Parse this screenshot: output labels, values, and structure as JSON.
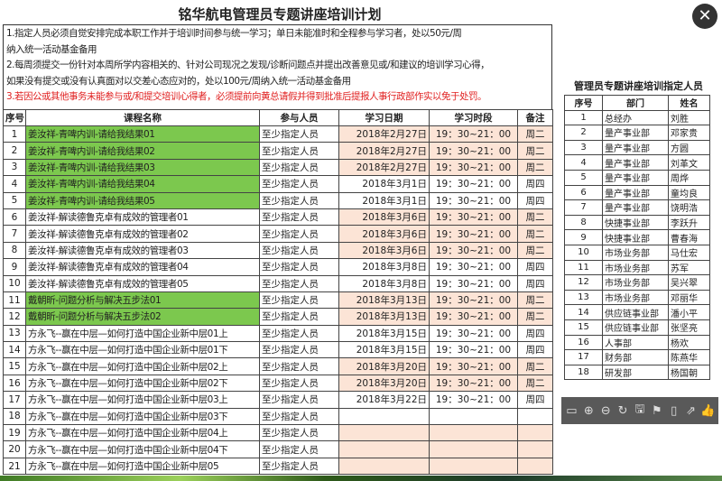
{
  "title": "铭华航电管理员专题讲座培训计划",
  "notes": [
    {
      "text": "1.指定人员必须自觉安排完成本职工作并于培训时间参与统一学习；单日未能准时和全程参与学习者，处以50元/周",
      "red": false
    },
    {
      "text": "纳入统一活动基金备用",
      "red": false
    },
    {
      "text": "2.每周须提交一份针对本周所学内容相关的、针对公司现况之发现/诊断问题点并提出改善意见或/和建议的培训学习心得，",
      "red": false
    },
    {
      "text": "如果没有提交或没有认真面对以交差心态应对的，处以100元/周纳入统一活动基金备用",
      "red": false
    },
    {
      "text": "3.若因公或其他事务未能参与或/和提交培训心得者，必须提前向黄总请假并得到批准后提报人事行政部作实以免于处罚。",
      "red": true
    }
  ],
  "main_table": {
    "headers": [
      "序号",
      "课程名称",
      "参与人员",
      "学习日期",
      "学习时段",
      "备注"
    ],
    "rows": [
      [
        "1",
        "姜汝祥-青啤内训-请给我结果01",
        "至少指定人员",
        "2018年2月27日",
        "19：30~21：00",
        "周二"
      ],
      [
        "2",
        "姜汝祥-青啤内训-请给我结果02",
        "至少指定人员",
        "2018年2月27日",
        "19：30~21：00",
        "周二"
      ],
      [
        "3",
        "姜汝祥-青啤内训-请给我结果03",
        "至少指定人员",
        "2018年2月27日",
        "19：30~21：00",
        "周二"
      ],
      [
        "4",
        "姜汝祥-青啤内训-请给我结果04",
        "至少指定人员",
        "2018年3月1日",
        "19：30~21：00",
        "周四"
      ],
      [
        "5",
        "姜汝祥-青啤内训-请给我结果05",
        "至少指定人员",
        "2018年3月1日",
        "19：30~21：00",
        "周四"
      ],
      [
        "6",
        "姜汝祥-解读德鲁克卓有成效的管理者01",
        "至少指定人员",
        "2018年3月6日",
        "19：30~21：00",
        "周二"
      ],
      [
        "7",
        "姜汝祥-解读德鲁克卓有成效的管理者02",
        "至少指定人员",
        "2018年3月6日",
        "19：30~21：00",
        "周二"
      ],
      [
        "8",
        "姜汝祥-解读德鲁克卓有成效的管理者03",
        "至少指定人员",
        "2018年3月6日",
        "19：30~21：00",
        "周二"
      ],
      [
        "9",
        "姜汝祥-解读德鲁克卓有成效的管理者04",
        "至少指定人员",
        "2018年3月8日",
        "19：30~21：00",
        "周四"
      ],
      [
        "10",
        "姜汝祥-解读德鲁克卓有成效的管理者05",
        "至少指定人员",
        "2018年3月8日",
        "19：30~21：00",
        "周四"
      ],
      [
        "11",
        "戴朝昕-问题分析与解决五步法01",
        "至少指定人员",
        "2018年3月13日",
        "19：30~21：00",
        "周二"
      ],
      [
        "12",
        "戴朝昕-问题分析与解决五步法02",
        "至少指定人员",
        "2018年3月13日",
        "19：30~21：00",
        "周二"
      ],
      [
        "13",
        "方永飞--赢在中层—如何打造中国企业新中层01上",
        "至少指定人员",
        "2018年3月15日",
        "19：30~21：00",
        "周四"
      ],
      [
        "14",
        "方永飞--赢在中层—如何打造中国企业新中层01下",
        "至少指定人员",
        "2018年3月15日",
        "19：30~21：00",
        "周四"
      ],
      [
        "15",
        "方永飞--赢在中层—如何打造中国企业新中层02上",
        "至少指定人员",
        "2018年3月20日",
        "19：30~21：00",
        "周二"
      ],
      [
        "16",
        "方永飞--赢在中层—如何打造中国企业新中层02下",
        "至少指定人员",
        "2018年3月20日",
        "19：30~21：00",
        "周二"
      ],
      [
        "17",
        "方永飞--赢在中层—如何打造中国企业新中层03上",
        "至少指定人员",
        "2018年3月22日",
        "19：30~21：00",
        "周四"
      ],
      [
        "18",
        "方永飞--赢在中层—如何打造中国企业新中层03下",
        "至少指定人员",
        "",
        "",
        ""
      ],
      [
        "19",
        "方永飞--赢在中层—如何打造中国企业新中层04上",
        "至少指定人员",
        "",
        "",
        ""
      ],
      [
        "20",
        "方永飞--赢在中层—如何打造中国企业新中层04下",
        "至少指定人员",
        "",
        "",
        ""
      ],
      [
        "21",
        "方永飞--赢在中层—如何打造中国企业新中层05",
        "至少指定人员",
        "",
        "",
        ""
      ]
    ],
    "green_rows": [
      1,
      2,
      3,
      4,
      5,
      11,
      12
    ],
    "peach_rows": [
      1,
      2,
      3,
      6,
      7,
      8,
      11,
      12,
      15,
      16,
      19,
      20,
      21
    ]
  },
  "side_table": {
    "title": "管理员专题讲座培训指定人员",
    "headers": [
      "序号",
      "部门",
      "姓名"
    ],
    "rows": [
      [
        "1",
        "总经办",
        "刘胜"
      ],
      [
        "2",
        "量产事业部",
        "邓家贵"
      ],
      [
        "3",
        "量产事业部",
        "方圆"
      ],
      [
        "4",
        "量产事业部",
        "刘革文"
      ],
      [
        "5",
        "量产事业部",
        "周烨"
      ],
      [
        "6",
        "量产事业部",
        "童均良"
      ],
      [
        "7",
        "量产事业部",
        "饶明浩"
      ],
      [
        "8",
        "快捷事业部",
        "李跃升"
      ],
      [
        "9",
        "快捷事业部",
        "曹春海"
      ],
      [
        "10",
        "市场业务部",
        "马仕宏"
      ],
      [
        "11",
        "市场业务部",
        "苏军"
      ],
      [
        "12",
        "市场业务部",
        "吴兴翠"
      ],
      [
        "13",
        "市场业务部",
        "邓丽华"
      ],
      [
        "14",
        "供应链事业部",
        "潘小平"
      ],
      [
        "15",
        "供应链事业部",
        "张坚亮"
      ],
      [
        "16",
        "人事部",
        "杨欢"
      ],
      [
        "17",
        "财务部",
        "陈燕华"
      ],
      [
        "18",
        "研发部",
        "杨国朝"
      ]
    ]
  },
  "viewer": {
    "close_icon": "✕",
    "toolbar": [
      {
        "name": "fit-screen-icon",
        "glyph": "▭"
      },
      {
        "name": "zoom-in-icon",
        "glyph": "⊕"
      },
      {
        "name": "zoom-out-icon",
        "glyph": "⊖"
      },
      {
        "name": "rotate-icon",
        "glyph": "↻"
      },
      {
        "name": "save-icon",
        "glyph": "🖫"
      },
      {
        "name": "bookmark-icon",
        "glyph": "⚑"
      },
      {
        "name": "phone-icon",
        "glyph": "▯"
      },
      {
        "name": "share-icon",
        "glyph": "⇗"
      },
      {
        "name": "like-icon",
        "glyph": "👍"
      }
    ]
  },
  "colors": {
    "green": "#7cc84e",
    "peach": "#fce4d6",
    "red": "#e02020"
  }
}
